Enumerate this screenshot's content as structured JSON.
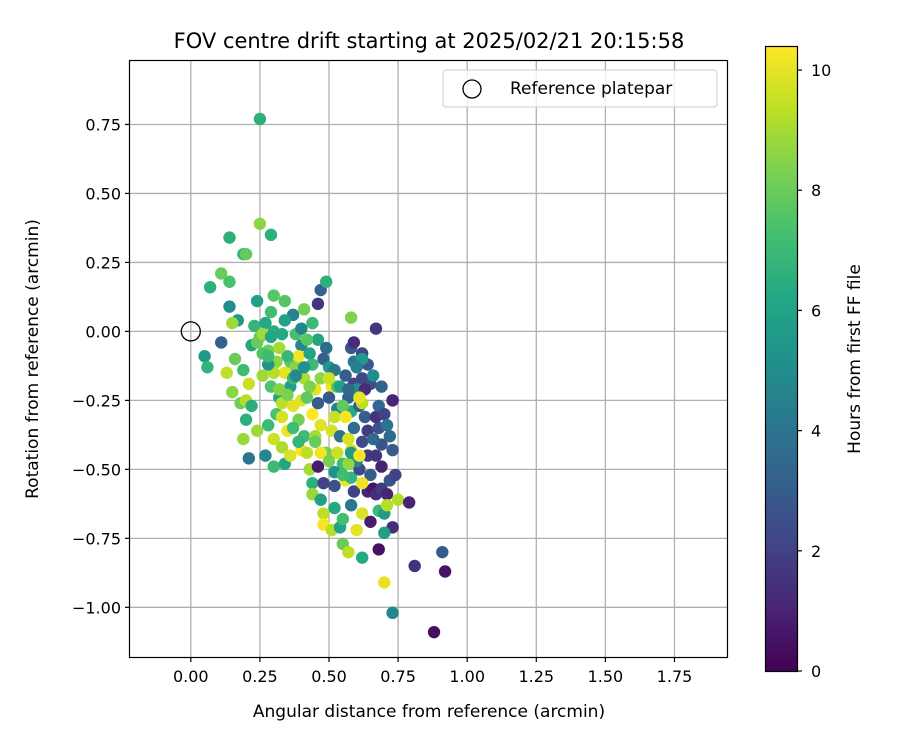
{
  "chart_data": {
    "type": "scatter",
    "title": "FOV centre drift starting at 2025/02/21 20:15:58",
    "xlabel": "Angular distance from reference (arcmin)",
    "ylabel": "Rotation from reference (arcmin)",
    "xlim": [
      -0.22,
      1.94
    ],
    "ylim": [
      -1.18,
      0.98
    ],
    "xticks": [
      0.0,
      0.25,
      0.5,
      0.75,
      1.0,
      1.25,
      1.5,
      1.75
    ],
    "xtick_labels": [
      "0.00",
      "0.25",
      "0.50",
      "0.75",
      "1.00",
      "1.25",
      "1.50",
      "1.75"
    ],
    "yticks": [
      -1.0,
      -0.75,
      -0.5,
      -0.25,
      0.0,
      0.25,
      0.5,
      0.75
    ],
    "ytick_labels": [
      "−1.00",
      "−0.75",
      "−0.50",
      "−0.25",
      "0.00",
      "0.25",
      "0.50",
      "0.75"
    ],
    "grid": true,
    "legend": {
      "placement": "top-right",
      "entries": [
        "Reference platepar"
      ]
    },
    "reference_point": {
      "x": 0.0,
      "y": 0.0,
      "marker": "hollow-circle"
    },
    "colorbar": {
      "label": "Hours from first FF file",
      "range": [
        0,
        10.4
      ],
      "ticks": [
        0,
        2,
        4,
        6,
        8,
        10
      ],
      "tick_labels": [
        "0",
        "2",
        "4",
        "6",
        "8",
        "10"
      ],
      "colormap": "viridis"
    },
    "points": [
      [
        0.25,
        0.77,
        6.6
      ],
      [
        0.25,
        0.39,
        8.6
      ],
      [
        0.29,
        0.35,
        6.6
      ],
      [
        0.19,
        0.28,
        6.9
      ],
      [
        0.14,
        0.34,
        6.6
      ],
      [
        0.11,
        0.21,
        8.0
      ],
      [
        0.07,
        0.16,
        6.6
      ],
      [
        0.14,
        0.18,
        7.4
      ],
      [
        0.2,
        0.28,
        7.9
      ],
      [
        0.24,
        0.11,
        5.9
      ],
      [
        0.3,
        0.13,
        7.6
      ],
      [
        0.34,
        0.11,
        7.6
      ],
      [
        0.37,
        0.06,
        4.6
      ],
      [
        0.41,
        0.08,
        8.2
      ],
      [
        0.44,
        0.03,
        7.0
      ],
      [
        0.46,
        0.1,
        1.6
      ],
      [
        0.47,
        0.15,
        3.2
      ],
      [
        0.49,
        0.18,
        6.6
      ],
      [
        0.58,
        0.05,
        8.4
      ],
      [
        0.67,
        0.01,
        1.6
      ],
      [
        0.11,
        -0.04,
        3.3
      ],
      [
        0.05,
        -0.09,
        5.5
      ],
      [
        0.06,
        -0.13,
        6.8
      ],
      [
        0.14,
        0.09,
        5.0
      ],
      [
        0.17,
        0.04,
        5.5
      ],
      [
        0.15,
        0.03,
        8.9
      ],
      [
        0.16,
        -0.1,
        8.0
      ],
      [
        0.13,
        -0.15,
        9.4
      ],
      [
        0.15,
        -0.22,
        8.6
      ],
      [
        0.18,
        -0.26,
        8.1
      ],
      [
        0.2,
        -0.25,
        9.3
      ],
      [
        0.22,
        -0.27,
        6.5
      ],
      [
        0.19,
        -0.14,
        7.1
      ],
      [
        0.21,
        -0.19,
        9.6
      ],
      [
        0.2,
        -0.32,
        6.6
      ],
      [
        0.19,
        -0.39,
        8.8
      ],
      [
        0.21,
        -0.46,
        3.9
      ],
      [
        0.24,
        -0.36,
        8.9
      ],
      [
        0.27,
        -0.45,
        4.8
      ],
      [
        0.28,
        -0.34,
        7.0
      ],
      [
        0.22,
        -0.05,
        6.2
      ],
      [
        0.25,
        -0.02,
        7.7
      ],
      [
        0.23,
        0.02,
        6.8
      ],
      [
        0.27,
        0.03,
        6.3
      ],
      [
        0.29,
        0.07,
        7.2
      ],
      [
        0.28,
        -0.07,
        8.1
      ],
      [
        0.31,
        -0.11,
        8.6
      ],
      [
        0.26,
        -0.16,
        8.9
      ],
      [
        0.29,
        -0.2,
        7.5
      ],
      [
        0.32,
        -0.24,
        6.2
      ],
      [
        0.31,
        -0.3,
        7.4
      ],
      [
        0.3,
        -0.39,
        9.6
      ],
      [
        0.3,
        -0.49,
        7.0
      ],
      [
        0.33,
        -0.42,
        9.1
      ],
      [
        0.34,
        -0.48,
        6.1
      ],
      [
        0.36,
        -0.45,
        9.8
      ],
      [
        0.35,
        -0.36,
        10.1
      ],
      [
        0.33,
        -0.26,
        9.4
      ],
      [
        0.36,
        -0.2,
        5.9
      ],
      [
        0.34,
        -0.15,
        10.0
      ],
      [
        0.36,
        -0.11,
        7.8
      ],
      [
        0.38,
        -0.13,
        8.5
      ],
      [
        0.4,
        -0.05,
        4.8
      ],
      [
        0.39,
        -0.09,
        10.2
      ],
      [
        0.41,
        -0.17,
        9.1
      ],
      [
        0.4,
        -0.25,
        9.9
      ],
      [
        0.39,
        -0.32,
        8.2
      ],
      [
        0.41,
        -0.38,
        7.1
      ],
      [
        0.4,
        -0.43,
        10.3
      ],
      [
        0.43,
        -0.5,
        9.0
      ],
      [
        0.44,
        -0.55,
        6.6
      ],
      [
        0.44,
        -0.59,
        8.8
      ],
      [
        0.47,
        -0.61,
        5.9
      ],
      [
        0.48,
        -0.66,
        9.4
      ],
      [
        0.48,
        -0.7,
        10.3
      ],
      [
        0.51,
        -0.72,
        9.3
      ],
      [
        0.54,
        -0.71,
        6.0
      ],
      [
        0.55,
        -0.77,
        8.0
      ],
      [
        0.57,
        -0.8,
        9.4
      ],
      [
        0.62,
        -0.82,
        6.3
      ],
      [
        0.6,
        -0.72,
        10.0
      ],
      [
        0.62,
        -0.66,
        9.8
      ],
      [
        0.58,
        -0.63,
        4.1
      ],
      [
        0.55,
        -0.68,
        7.3
      ],
      [
        0.52,
        -0.64,
        6.3
      ],
      [
        0.52,
        -0.56,
        2.6
      ],
      [
        0.48,
        -0.55,
        2.1
      ],
      [
        0.46,
        -0.49,
        0.8
      ],
      [
        0.49,
        -0.44,
        8.1
      ],
      [
        0.45,
        -0.38,
        9.0
      ],
      [
        0.47,
        -0.34,
        9.9
      ],
      [
        0.44,
        -0.3,
        10.4
      ],
      [
        0.46,
        -0.26,
        3.0
      ],
      [
        0.45,
        -0.21,
        10.0
      ],
      [
        0.47,
        -0.17,
        8.6
      ],
      [
        0.44,
        -0.12,
        7.0
      ],
      [
        0.46,
        -0.03,
        6.1
      ],
      [
        0.49,
        -0.06,
        3.7
      ],
      [
        0.48,
        -0.1,
        3.3
      ],
      [
        0.5,
        -0.13,
        5.5
      ],
      [
        0.52,
        -0.14,
        4.2
      ],
      [
        0.51,
        -0.2,
        10.2
      ],
      [
        0.5,
        -0.24,
        2.9
      ],
      [
        0.53,
        -0.28,
        4.5
      ],
      [
        0.52,
        -0.31,
        9.5
      ],
      [
        0.51,
        -0.36,
        9.7
      ],
      [
        0.54,
        -0.38,
        3.9
      ],
      [
        0.53,
        -0.44,
        9.6
      ],
      [
        0.55,
        -0.48,
        7.1
      ],
      [
        0.56,
        -0.54,
        10.1
      ],
      [
        0.58,
        -0.53,
        6.8
      ],
      [
        0.59,
        -0.58,
        2.0
      ],
      [
        0.61,
        -0.5,
        2.4
      ],
      [
        0.6,
        -0.47,
        4.8
      ],
      [
        0.58,
        -0.43,
        9.8
      ],
      [
        0.57,
        -0.39,
        9.8
      ],
      [
        0.59,
        -0.35,
        3.8
      ],
      [
        0.58,
        -0.29,
        6.3
      ],
      [
        0.57,
        -0.24,
        3.1
      ],
      [
        0.59,
        -0.19,
        2.1
      ],
      [
        0.58,
        -0.06,
        2.8
      ],
      [
        0.59,
        -0.04,
        1.3
      ],
      [
        0.59,
        -0.11,
        4.1
      ],
      [
        0.62,
        -0.08,
        2.0
      ],
      [
        0.62,
        -0.17,
        2.3
      ],
      [
        0.6,
        -0.21,
        5.0
      ],
      [
        0.61,
        -0.27,
        2.9
      ],
      [
        0.63,
        -0.31,
        3.1
      ],
      [
        0.64,
        -0.36,
        1.8
      ],
      [
        0.62,
        -0.4,
        2.4
      ],
      [
        0.64,
        -0.45,
        1.7
      ],
      [
        0.65,
        -0.52,
        3.0
      ],
      [
        0.64,
        -0.58,
        1.0
      ],
      [
        0.66,
        -0.57,
        0.6
      ],
      [
        0.67,
        -0.59,
        1.3
      ],
      [
        0.69,
        -0.57,
        1.8
      ],
      [
        0.71,
        -0.59,
        1.1
      ],
      [
        0.72,
        -0.54,
        2.6
      ],
      [
        0.69,
        -0.49,
        1.0
      ],
      [
        0.67,
        -0.45,
        1.6
      ],
      [
        0.69,
        -0.41,
        2.7
      ],
      [
        0.66,
        -0.39,
        3.5
      ],
      [
        0.68,
        -0.35,
        2.6
      ],
      [
        0.67,
        -0.31,
        1.5
      ],
      [
        0.68,
        -0.27,
        3.4
      ],
      [
        0.7,
        -0.3,
        2.0
      ],
      [
        0.73,
        -0.25,
        0.8
      ],
      [
        0.65,
        -0.19,
        2.5
      ],
      [
        0.63,
        -0.21,
        1.3
      ],
      [
        0.62,
        -0.26,
        9.3
      ],
      [
        0.61,
        -0.24,
        10.0
      ],
      [
        0.55,
        -0.27,
        7.8
      ],
      [
        0.56,
        -0.31,
        10.2
      ],
      [
        0.53,
        -0.2,
        7.5
      ],
      [
        0.5,
        -0.17,
        9.6
      ],
      [
        0.43,
        -0.2,
        8.4
      ],
      [
        0.42,
        -0.24,
        7.8
      ],
      [
        0.37,
        -0.27,
        9.9
      ],
      [
        0.35,
        -0.23,
        8.3
      ],
      [
        0.37,
        -0.17,
        6.9
      ],
      [
        0.32,
        -0.21,
        8.5
      ],
      [
        0.3,
        -0.15,
        9.3
      ],
      [
        0.28,
        -0.12,
        5.4
      ],
      [
        0.26,
        -0.08,
        7.5
      ],
      [
        0.24,
        -0.04,
        8.0
      ],
      [
        0.26,
        -0.01,
        8.9
      ],
      [
        0.3,
        0.0,
        6.5
      ],
      [
        0.33,
        -0.01,
        6.3
      ],
      [
        0.34,
        0.04,
        6.0
      ],
      [
        0.38,
        -0.01,
        7.3
      ],
      [
        0.4,
        0.01,
        4.7
      ],
      [
        0.42,
        -0.03,
        7.7
      ],
      [
        0.43,
        -0.08,
        6.0
      ],
      [
        0.41,
        -0.13,
        5.3
      ],
      [
        0.38,
        -0.16,
        4.9
      ],
      [
        0.35,
        -0.09,
        6.9
      ],
      [
        0.32,
        -0.06,
        9.0
      ],
      [
        0.29,
        -0.02,
        6.1
      ],
      [
        0.28,
        -0.09,
        7.1
      ],
      [
        0.33,
        -0.31,
        9.7
      ],
      [
        0.37,
        -0.35,
        7.2
      ],
      [
        0.39,
        -0.4,
        6.8
      ],
      [
        0.42,
        -0.44,
        9.4
      ],
      [
        0.45,
        -0.4,
        8.0
      ],
      [
        0.47,
        -0.44,
        10.2
      ],
      [
        0.5,
        -0.47,
        8.3
      ],
      [
        0.52,
        -0.51,
        5.3
      ],
      [
        0.55,
        -0.52,
        7.2
      ],
      [
        0.57,
        -0.48,
        8.7
      ],
      [
        0.58,
        -0.44,
        5.7
      ],
      [
        0.61,
        -0.45,
        10.3
      ],
      [
        0.62,
        -0.55,
        10.1
      ],
      [
        0.65,
        -0.69,
        0.8
      ],
      [
        0.68,
        -0.65,
        7.0
      ],
      [
        0.7,
        -0.66,
        5.6
      ],
      [
        0.71,
        -0.63,
        9.3
      ],
      [
        0.73,
        -0.71,
        1.3
      ],
      [
        0.68,
        -0.79,
        0.5
      ],
      [
        0.7,
        -0.73,
        5.8
      ],
      [
        0.7,
        -0.91,
        10.0
      ],
      [
        0.73,
        -1.02,
        4.8
      ],
      [
        0.75,
        -0.61,
        9.2
      ],
      [
        0.74,
        -0.52,
        2.0
      ],
      [
        0.73,
        -0.43,
        3.0
      ],
      [
        0.72,
        -0.38,
        3.6
      ],
      [
        0.79,
        -0.62,
        1.0
      ],
      [
        0.81,
        -0.85,
        1.5
      ],
      [
        0.88,
        -1.09,
        0.4
      ],
      [
        0.91,
        -0.8,
        3.0
      ],
      [
        0.92,
        -0.87,
        0.5
      ],
      [
        0.73,
        -0.25,
        1.1
      ],
      [
        0.71,
        -0.34,
        4.0
      ],
      [
        0.69,
        -0.2,
        3.3
      ],
      [
        0.66,
        -0.16,
        5.0
      ],
      [
        0.64,
        -0.12,
        2.8
      ],
      [
        0.62,
        -0.1,
        5.5
      ],
      [
        0.6,
        -0.13,
        4.5
      ],
      [
        0.56,
        -0.16,
        3.0
      ],
      [
        0.54,
        -0.2,
        5.9
      ],
      [
        0.57,
        -0.21,
        3.5
      ]
    ]
  }
}
